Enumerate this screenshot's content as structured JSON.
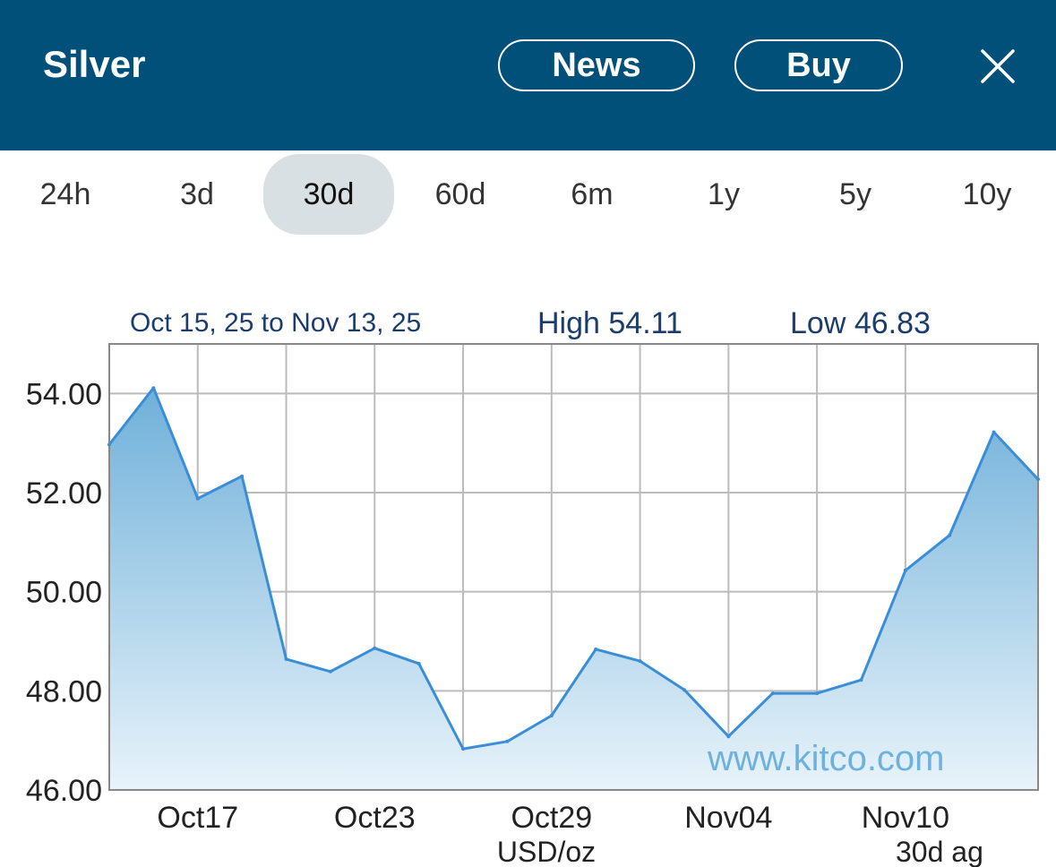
{
  "header": {
    "title": "Silver",
    "news_label": "News",
    "buy_label": "Buy",
    "close_icon": "close-icon"
  },
  "tabs": [
    {
      "label": "24h",
      "active": false
    },
    {
      "label": "3d",
      "active": false
    },
    {
      "label": "30d",
      "active": true
    },
    {
      "label": "60d",
      "active": false
    },
    {
      "label": "6m",
      "active": false
    },
    {
      "label": "1y",
      "active": false
    },
    {
      "label": "5y",
      "active": false
    },
    {
      "label": "10y",
      "active": false
    }
  ],
  "colors": {
    "header_bg": "#00507a",
    "line": "#3a8ed8",
    "fill_top": "#6fb0d9",
    "fill_bottom": "#e8f3fa",
    "grid": "#bbbbbb",
    "header_text": "#1a3d6e",
    "watermark": "#5ba7d6"
  },
  "chart_data": {
    "type": "area",
    "range_label": "Oct 15, 25 to Nov 13, 25",
    "high_label": "High 54.11",
    "low_label": "Low 46.83",
    "watermark": "www.kitco.com",
    "unit_label": "USD/oz",
    "period_label": "30d ag",
    "ylim": [
      46,
      55
    ],
    "yticks": [
      46,
      48,
      50,
      52,
      54
    ],
    "ytick_labels": [
      "46.00",
      "48.00",
      "50.00",
      "52.00",
      "54.00"
    ],
    "x_labels": [
      {
        "label": "Oct17",
        "index": 2
      },
      {
        "label": "Oct23",
        "index": 6
      },
      {
        "label": "Oct29",
        "index": 10
      },
      {
        "label": "Nov04",
        "index": 14
      },
      {
        "label": "Nov10",
        "index": 18
      }
    ],
    "grid": true,
    "points": [
      {
        "x": "Oct15",
        "y": 52.97
      },
      {
        "x": "Oct16",
        "y": 54.11
      },
      {
        "x": "Oct17",
        "y": 51.88
      },
      {
        "x": "Oct18",
        "y": 52.33
      },
      {
        "x": "Oct19",
        "y": 48.64
      },
      {
        "x": "Oct20",
        "y": 48.39
      },
      {
        "x": "Oct23",
        "y": 48.86
      },
      {
        "x": "Oct24",
        "y": 48.55
      },
      {
        "x": "Oct25",
        "y": 46.83
      },
      {
        "x": "Oct26",
        "y": 46.98
      },
      {
        "x": "Oct29",
        "y": 47.5
      },
      {
        "x": "Oct30",
        "y": 48.84
      },
      {
        "x": "Oct31",
        "y": 48.6
      },
      {
        "x": "Nov01",
        "y": 48.02
      },
      {
        "x": "Nov04",
        "y": 47.08
      },
      {
        "x": "Nov05",
        "y": 47.95
      },
      {
        "x": "Nov06",
        "y": 47.95
      },
      {
        "x": "Nov07",
        "y": 48.22
      },
      {
        "x": "Nov10",
        "y": 50.43
      },
      {
        "x": "Nov11",
        "y": 51.14
      },
      {
        "x": "Nov12",
        "y": 53.22
      },
      {
        "x": "Nov13",
        "y": 52.27
      }
    ]
  }
}
